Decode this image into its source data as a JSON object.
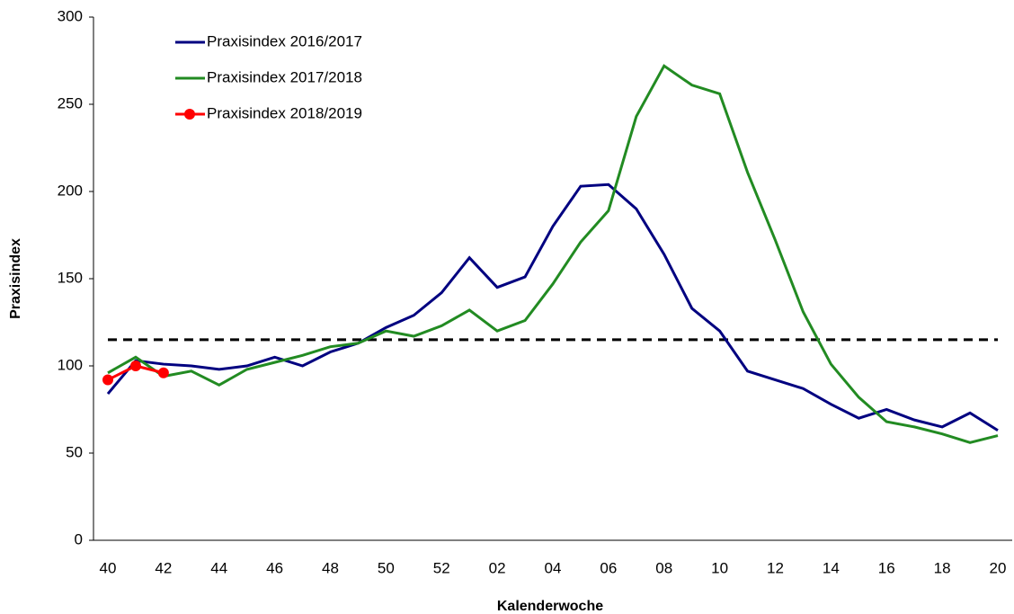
{
  "chart_data": {
    "type": "line",
    "y_label": "Praxisindex",
    "x_label": "Kalenderwoche",
    "categories": [
      "40",
      null,
      "42",
      null,
      "44",
      null,
      "46",
      null,
      "48",
      null,
      "50",
      null,
      "52",
      null,
      "02",
      null,
      "04",
      null,
      "06",
      null,
      "08",
      null,
      "10",
      null,
      "12",
      null,
      "14",
      null,
      "16",
      null,
      "18",
      null,
      "20"
    ],
    "series": [
      {
        "name": "Praxisindex 2016/2017",
        "color": "#000080",
        "marker": false,
        "values": [
          84,
          103,
          101,
          100,
          98,
          100,
          105,
          100,
          108,
          113,
          122,
          129,
          142,
          162,
          145,
          151,
          180,
          203,
          204,
          190,
          164,
          133,
          120,
          97,
          92,
          87,
          78,
          70,
          75,
          69,
          65,
          73,
          63
        ]
      },
      {
        "name": "Praxisindex 2017/2018",
        "color": "#228b22",
        "marker": false,
        "values": [
          96,
          105,
          94,
          97,
          89,
          98,
          102,
          106,
          111,
          113,
          120,
          117,
          123,
          132,
          120,
          126,
          147,
          171,
          189,
          243,
          272,
          261,
          256,
          211,
          172,
          131,
          101,
          82,
          68,
          65,
          61,
          56,
          60
        ]
      },
      {
        "name": "Praxisindex 2018/2019",
        "color": "#ff0000",
        "marker": true,
        "values": [
          92,
          100,
          96,
          null,
          null,
          null,
          null,
          null,
          null,
          null,
          null,
          null,
          null,
          null,
          null,
          null,
          null,
          null,
          null,
          null,
          null,
          null,
          null,
          null,
          null,
          null,
          null,
          null,
          null,
          null,
          null,
          null,
          null
        ]
      }
    ],
    "threshold": 115,
    "ylim": [
      0,
      300
    ],
    "yticks": [
      0,
      50,
      100,
      150,
      200,
      250,
      300
    ],
    "legend": "upper left"
  }
}
